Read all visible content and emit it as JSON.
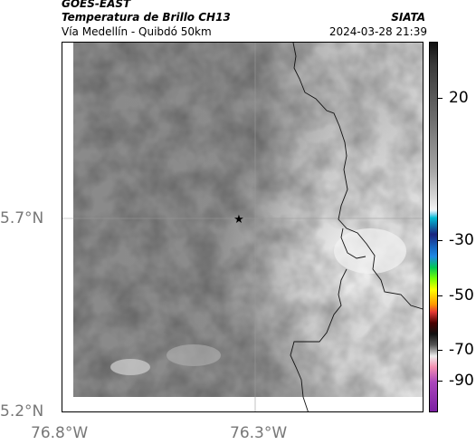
{
  "header": {
    "satellite": "GOES-EAST",
    "product": "Temperatura de Brillo CH13",
    "region": "Vía Medellín - Quibdó 50km",
    "organization": "SIATA",
    "timestamp": "2024-03-28 21:39"
  },
  "map": {
    "lat_labels": [
      "5.7°N",
      "5.2°N"
    ],
    "lon_labels": [
      "76.8°W",
      "76.3°W"
    ],
    "marker": "star-marker"
  },
  "colorbar": {
    "labels": [
      "20",
      "-30",
      "-50",
      "-70",
      "-90"
    ]
  }
}
